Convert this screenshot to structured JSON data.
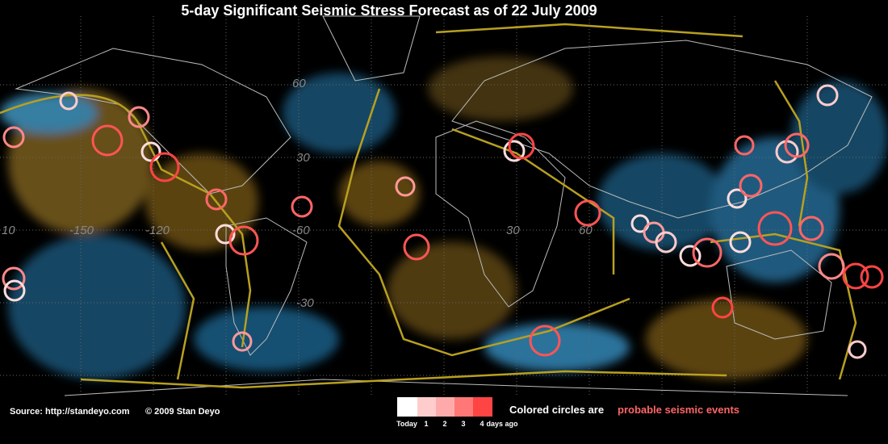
{
  "header": {
    "title": "5-day Significant Seismic Stress Forecast as of 22 July 2009"
  },
  "map": {
    "grid_labels": [
      "10",
      "-150",
      "-120",
      "-60",
      "30",
      "60",
      "30",
      "-30",
      "60"
    ]
  },
  "footer": {
    "source": "Source:  http://standeyo.com",
    "copyright": "© 2009 Stan Deyo",
    "legend": {
      "labels": [
        "Today",
        "1",
        "2",
        "3",
        "4"
      ],
      "unit": "days ago"
    },
    "note": {
      "text": "Colored circles are",
      "highlight": "probable seismic events"
    }
  }
}
